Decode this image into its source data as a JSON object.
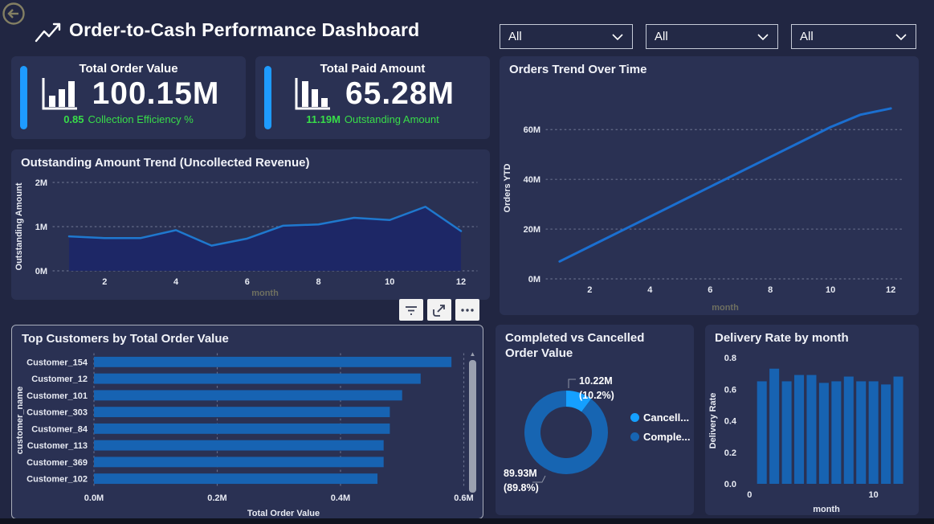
{
  "header": {
    "title": "Order-to-Cash Performance Dashboard",
    "slicers": [
      {
        "value": "All"
      },
      {
        "value": "All"
      },
      {
        "value": "All"
      }
    ]
  },
  "kpis": [
    {
      "title": "Total Order Value",
      "value": "100.15M",
      "sub_value": "0.85",
      "sub_label": "Collection Efficiency %"
    },
    {
      "title": "Total Paid Amount",
      "value": "65.28M",
      "sub_value": "11.19M",
      "sub_label": "Outstanding Amount"
    }
  ],
  "toolbar": {
    "buttons": [
      "filter",
      "focus-mode",
      "more-options"
    ]
  },
  "colors": {
    "background": "#212642",
    "panel": "#2A3153",
    "accent_blue": "#1E9BFF",
    "green": "#38DD49",
    "bar_blue": "#1763B2",
    "line_blue": "#1F78CE",
    "area_fill": "#1D2766",
    "orders_line": "#1B6FD0",
    "donut_cancelled": "#15A0FF",
    "donut_completed": "#1765B2",
    "tick": "#E8EBF3",
    "muted_axis": "#6E6F60",
    "scroll_thumb": "#9BA1B0",
    "back_icon": "#837F63"
  },
  "chart_data": [
    {
      "id": "outstanding",
      "type": "area",
      "title": "Outstanding Amount Trend (Uncollected Revenue)",
      "xlabel": "month",
      "ylabel": "Outstanding Amount",
      "x": [
        1,
        2,
        3,
        4,
        5,
        6,
        7,
        8,
        9,
        10,
        11,
        12
      ],
      "values": [
        0.78,
        0.74,
        0.74,
        0.92,
        0.57,
        0.73,
        1.02,
        1.05,
        1.2,
        1.15,
        1.45,
        0.9
      ],
      "ylim": [
        0,
        2
      ],
      "yticks": [
        {
          "v": 0,
          "label": "0M"
        },
        {
          "v": 1,
          "label": "1M"
        },
        {
          "v": 2,
          "label": "2M"
        }
      ],
      "xticks": [
        2,
        4,
        6,
        8,
        10,
        12
      ],
      "grid": true,
      "legend": "none"
    },
    {
      "id": "orders",
      "type": "line",
      "title": "Orders Trend Over Time",
      "xlabel": "month",
      "ylabel": "Orders YTD",
      "x": [
        1,
        2,
        3,
        4,
        5,
        6,
        7,
        8,
        9,
        10,
        11,
        12
      ],
      "values": [
        7,
        13,
        19,
        25,
        31,
        37,
        43,
        49,
        55,
        61,
        66,
        68.5
      ],
      "ylim": [
        0,
        73
      ],
      "yticks": [
        {
          "v": 0,
          "label": "0M"
        },
        {
          "v": 20,
          "label": "20M"
        },
        {
          "v": 40,
          "label": "40M"
        },
        {
          "v": 60,
          "label": "60M"
        }
      ],
      "xticks": [
        2,
        4,
        6,
        8,
        10,
        12
      ],
      "grid": true,
      "legend": "none"
    },
    {
      "id": "top_customers",
      "type": "bar-horizontal",
      "title": "Top Customers by Total Order Value",
      "xlabel": "Total Order Value",
      "ylabel": "customer_name",
      "categories": [
        "Customer_154",
        "Customer_12",
        "Customer_101",
        "Customer_303",
        "Customer_84",
        "Customer_113",
        "Customer_369",
        "Customer_102"
      ],
      "values": [
        0.58,
        0.53,
        0.5,
        0.48,
        0.48,
        0.47,
        0.47,
        0.46
      ],
      "xlim": [
        0,
        0.615
      ],
      "xticks": [
        {
          "v": 0,
          "label": "0.0M"
        },
        {
          "v": 0.2,
          "label": "0.2M"
        },
        {
          "v": 0.4,
          "label": "0.4M"
        },
        {
          "v": 0.6,
          "label": "0.6M"
        }
      ],
      "grid": true,
      "legend": "none"
    },
    {
      "id": "completed_vs_cancelled",
      "type": "pie",
      "title": "Completed vs Cancelled Order Value",
      "legend_position": "right",
      "slices": [
        {
          "name": "Cancell...",
          "value": 10.22,
          "pct": 10.2,
          "value_label": "10.22M",
          "pct_label": "(10.2%)"
        },
        {
          "name": "Comple...",
          "value": 89.93,
          "pct": 89.8,
          "value_label": "89.93M",
          "pct_label": "(89.8%)"
        }
      ]
    },
    {
      "id": "delivery_rate",
      "type": "bar",
      "title": "Delivery Rate by month",
      "xlabel": "month",
      "ylabel": "Delivery Rate",
      "x": [
        1,
        2,
        3,
        4,
        5,
        6,
        7,
        8,
        9,
        10,
        11,
        12
      ],
      "values": [
        0.65,
        0.73,
        0.65,
        0.69,
        0.69,
        0.64,
        0.65,
        0.68,
        0.65,
        0.65,
        0.63,
        0.68
      ],
      "ylim": [
        0,
        0.8
      ],
      "yticks": [
        {
          "v": 0,
          "label": "0.0"
        },
        {
          "v": 0.2,
          "label": "0.2"
        },
        {
          "v": 0.4,
          "label": "0.4"
        },
        {
          "v": 0.6,
          "label": "0.6"
        },
        {
          "v": 0.8,
          "label": "0.8"
        }
      ],
      "xticks": [
        {
          "v": 0,
          "label": "0"
        },
        {
          "v": 10,
          "label": "10"
        }
      ],
      "grid": false,
      "legend": "none"
    }
  ]
}
